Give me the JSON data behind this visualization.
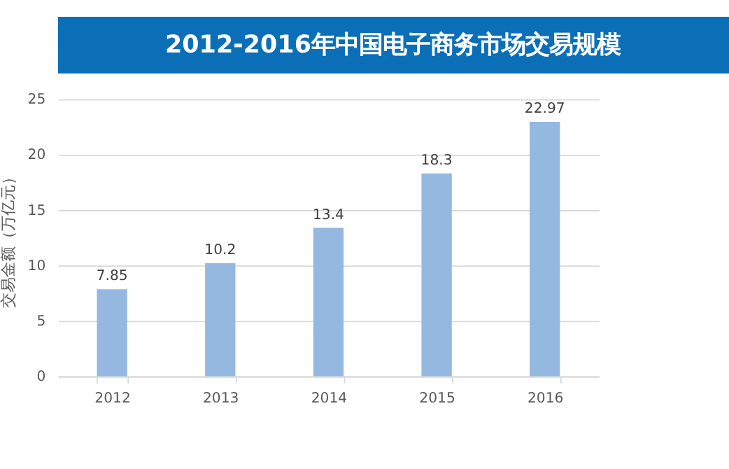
{
  "chart_data": {
    "type": "bar",
    "title": "2012-2016年中国电子商务市场交易规模",
    "ylabel": "交易金额（万亿元）",
    "categories": [
      "2012",
      "2013",
      "2014",
      "2015",
      "2016"
    ],
    "values": [
      7.85,
      10.2,
      13.4,
      18.3,
      22.97
    ],
    "color": "#95b8e0",
    "ylim": [
      0,
      25
    ],
    "yticks": [
      0,
      5,
      10,
      15,
      20,
      25
    ],
    "grid": "y",
    "data_labels": true
  }
}
